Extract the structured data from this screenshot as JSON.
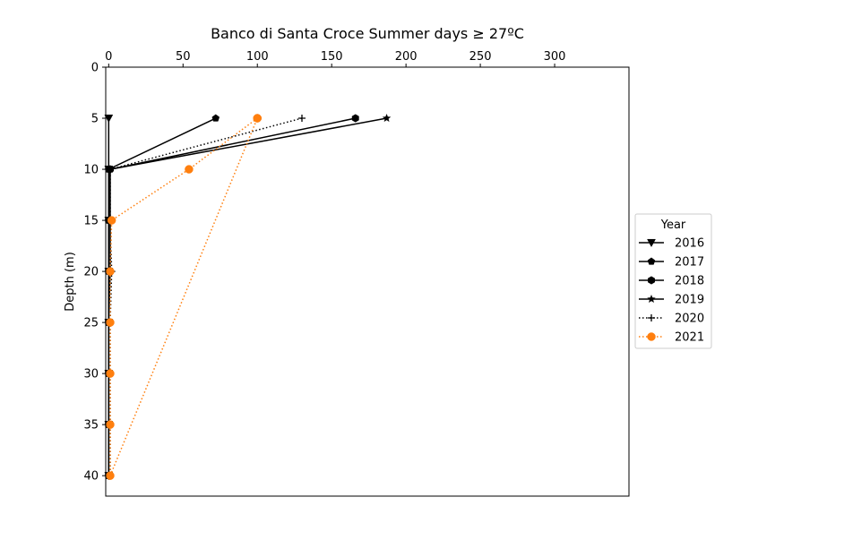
{
  "chart_data": {
    "type": "line",
    "title": "Banco di Santa Croce Summer days ≥ 27ºC",
    "xlabel": "",
    "ylabel": "Depth (m)",
    "x_axis_position": "top",
    "y_inverted": true,
    "xlim": [
      -2,
      350
    ],
    "ylim": [
      42,
      0
    ],
    "x_ticks": [
      0,
      50,
      100,
      150,
      200,
      250,
      300
    ],
    "y_ticks": [
      0,
      5,
      10,
      15,
      20,
      25,
      30,
      35,
      40
    ],
    "grid": false,
    "legend": {
      "title": "Year",
      "placement": "outside-right"
    },
    "series": [
      {
        "name": "2016",
        "color": "#000000",
        "line_style": "solid",
        "marker": "triangle-down",
        "points": [
          [
            0,
            5
          ],
          [
            0,
            10
          ],
          [
            0,
            15
          ],
          [
            0,
            20
          ],
          [
            0,
            25
          ],
          [
            0,
            30
          ],
          [
            0,
            35
          ],
          [
            0,
            40
          ]
        ]
      },
      {
        "name": "2017",
        "color": "#000000",
        "line_style": "solid",
        "marker": "pentagon",
        "points": [
          [
            72,
            5
          ],
          [
            0,
            10
          ],
          [
            0,
            15
          ],
          [
            0,
            20
          ],
          [
            0,
            25
          ],
          [
            0,
            30
          ],
          [
            0,
            35
          ],
          [
            0,
            40
          ]
        ]
      },
      {
        "name": "2018",
        "color": "#000000",
        "line_style": "solid",
        "marker": "hexagon",
        "points": [
          [
            166,
            5
          ],
          [
            1,
            10
          ],
          [
            0,
            15
          ],
          [
            0,
            20
          ],
          [
            0,
            25
          ],
          [
            0,
            30
          ],
          [
            0,
            35
          ],
          [
            0,
            40
          ]
        ]
      },
      {
        "name": "2019",
        "color": "#000000",
        "line_style": "solid",
        "marker": "star",
        "points": [
          [
            187,
            5
          ],
          [
            1,
            10
          ],
          [
            1,
            15
          ],
          [
            1,
            20
          ],
          [
            0,
            25
          ],
          [
            0,
            30
          ],
          [
            0,
            35
          ],
          [
            0,
            40
          ]
        ]
      },
      {
        "name": "2020",
        "color": "#000000",
        "line_style": "dotted",
        "marker": "plus",
        "points": [
          [
            130,
            5
          ],
          [
            1,
            10
          ],
          [
            1,
            15
          ],
          [
            2,
            20
          ],
          [
            1,
            25
          ],
          [
            1,
            30
          ],
          [
            1,
            35
          ],
          [
            1,
            40
          ]
        ]
      },
      {
        "name": "2021",
        "color": "#ff7f0e",
        "line_style": "dotted",
        "marker": "circle",
        "points": [
          [
            100,
            5
          ],
          [
            54,
            10
          ],
          [
            2,
            15
          ],
          [
            1,
            20
          ],
          [
            1,
            25
          ],
          [
            1,
            30
          ],
          [
            1,
            35
          ],
          [
            1,
            40
          ],
          [
            100,
            5
          ]
        ]
      }
    ]
  }
}
